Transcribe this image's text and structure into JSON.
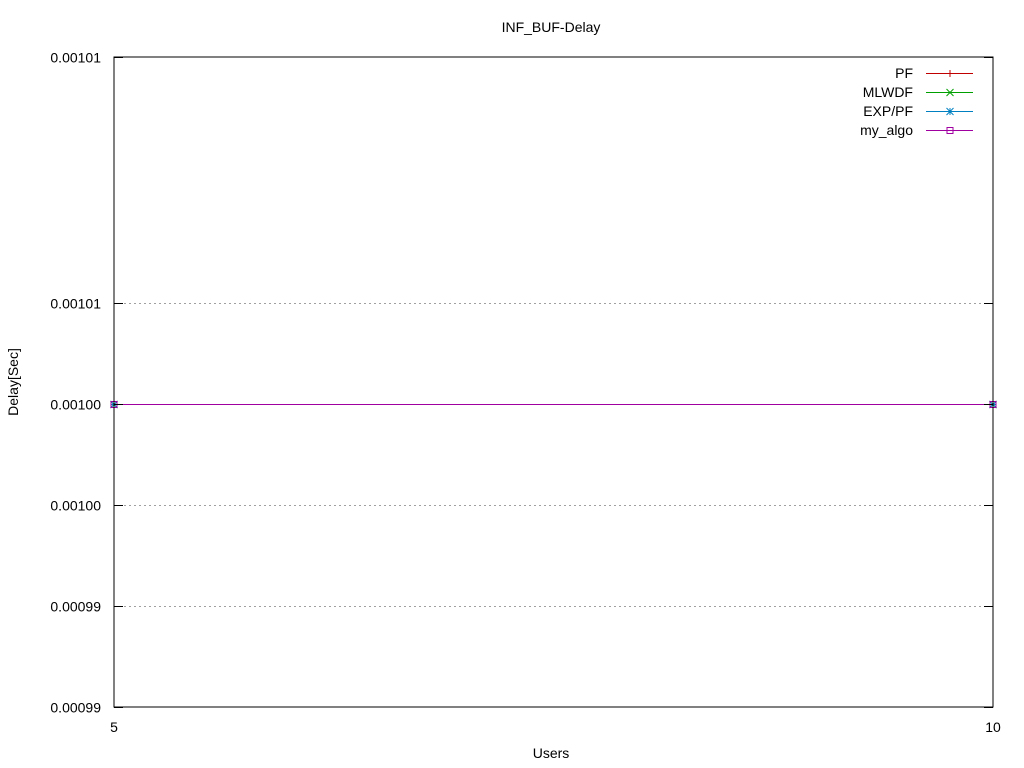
{
  "chart_data": {
    "type": "line",
    "title": "INF_BUF-Delay",
    "xlabel": "Users",
    "ylabel": "Delay[Sec]",
    "x": [
      5,
      10
    ],
    "xlim": [
      5,
      10
    ],
    "ylim": [
      0.0009875,
      0.00101
    ],
    "xticks": [
      {
        "value": 5,
        "label": "5"
      },
      {
        "value": 10,
        "label": "10"
      }
    ],
    "yticks": [
      {
        "value": 0.0009875,
        "label": "0.00099"
      },
      {
        "value": 0.000991,
        "label": "0.00099"
      },
      {
        "value": 0.0009945,
        "label": "0.00100"
      },
      {
        "value": 0.000998,
        "label": "0.00100"
      },
      {
        "value": 0.0010015,
        "label": "0.00101"
      },
      {
        "value": 0.00101,
        "label": "0.00101"
      }
    ],
    "grid": true,
    "legend_position": "top-right",
    "series": [
      {
        "name": "PF",
        "values": [
          0.000998,
          0.000998
        ],
        "color": "#c00000",
        "marker": "plus"
      },
      {
        "name": "MLWDF",
        "values": [
          0.000998,
          0.000998
        ],
        "color": "#00a000",
        "marker": "cross"
      },
      {
        "name": "EXP/PF",
        "values": [
          0.000998,
          0.000998
        ],
        "color": "#0080c0",
        "marker": "star"
      },
      {
        "name": "my_algo",
        "values": [
          0.000998,
          0.000998
        ],
        "color": "#a000a0",
        "marker": "square"
      }
    ]
  }
}
